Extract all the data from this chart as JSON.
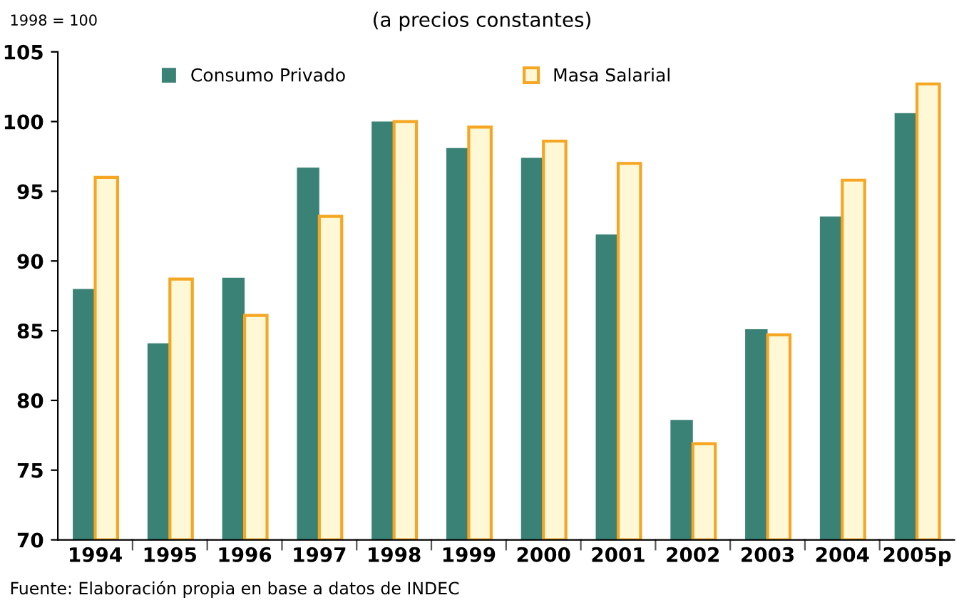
{
  "chart_data": {
    "type": "bar",
    "title": "(a precios constantes)",
    "ylabel": "1998 = 100",
    "categories": [
      "1994",
      "1995",
      "1996",
      "1997",
      "1998",
      "1999",
      "2000",
      "2001",
      "2002",
      "2003",
      "2004",
      "2005p"
    ],
    "series": [
      {
        "name": "Consumo Privado",
        "color": "#3a8276",
        "values": [
          88.0,
          84.1,
          88.8,
          96.7,
          100.0,
          98.1,
          97.4,
          91.9,
          78.6,
          85.1,
          93.2,
          100.6
        ]
      },
      {
        "name": "Masa Salarial",
        "color": "#fff8d6",
        "values": [
          96.0,
          88.7,
          86.1,
          93.2,
          100.0,
          99.6,
          98.6,
          97.0,
          76.9,
          84.7,
          95.8,
          102.7
        ]
      }
    ],
    "ylim": [
      70,
      105
    ],
    "yticks": [
      70,
      75,
      80,
      85,
      90,
      95,
      100,
      105
    ],
    "grid": false,
    "legend": "top",
    "annotations": [
      "Fuente: Elaboración propia en base a datos de INDEC"
    ]
  }
}
